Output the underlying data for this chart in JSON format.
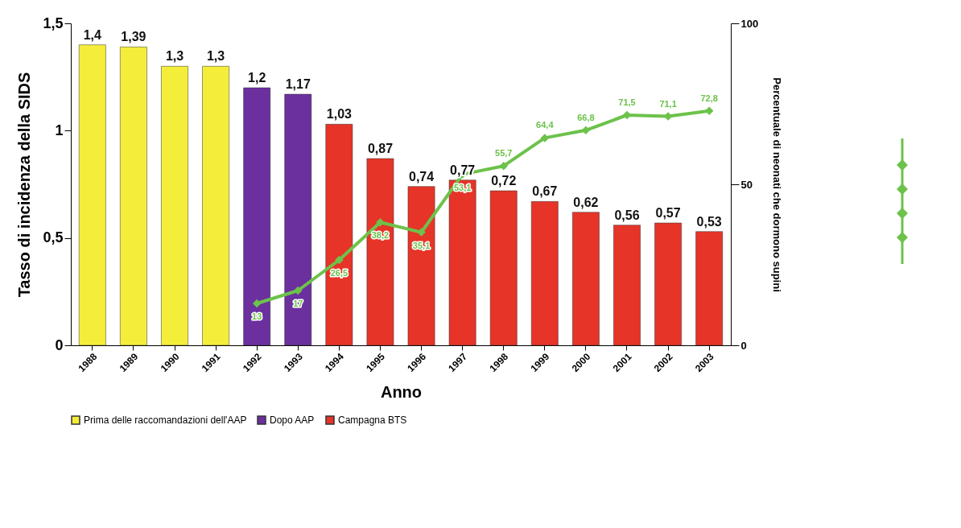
{
  "chart_data": {
    "type": "bar",
    "xlabel": "Anno",
    "ylabel": "Tasso di incidenza della SIDS",
    "y2label": "Percentuale di neonati che dormono supini",
    "categories": [
      "1988",
      "1989",
      "1990",
      "1991",
      "1992",
      "1993",
      "1994",
      "1995",
      "1996",
      "1997",
      "1998",
      "1999",
      "2000",
      "2001",
      "2002",
      "2003"
    ],
    "series": [
      {
        "name": "Prima delle raccomandazioni dell'AAP",
        "color": "#f4ee3a",
        "values": [
          1.4,
          1.39,
          1.3,
          1.3,
          null,
          null,
          null,
          null,
          null,
          null,
          null,
          null,
          null,
          null,
          null,
          null
        ],
        "value_labels": [
          "1,4",
          "1,39",
          "1,3",
          "1,3",
          null,
          null,
          null,
          null,
          null,
          null,
          null,
          null,
          null,
          null,
          null,
          null
        ]
      },
      {
        "name": "Dopo AAP",
        "color": "#6b2f9e",
        "values": [
          null,
          null,
          null,
          null,
          1.2,
          1.17,
          null,
          null,
          null,
          null,
          null,
          null,
          null,
          null,
          null,
          null
        ],
        "value_labels": [
          null,
          null,
          null,
          null,
          "1,2",
          "1,17",
          null,
          null,
          null,
          null,
          null,
          null,
          null,
          null,
          null,
          null
        ]
      },
      {
        "name": "Campagna BTS",
        "color": "#e63428",
        "values": [
          null,
          null,
          null,
          null,
          null,
          null,
          1.03,
          0.87,
          0.74,
          0.77,
          0.72,
          0.67,
          0.62,
          0.56,
          0.57,
          0.53
        ],
        "value_labels": [
          null,
          null,
          null,
          null,
          null,
          null,
          "1,03",
          "0,87",
          "0,74",
          "0,77",
          "0,72",
          "0,67",
          "0,62",
          "0,56",
          "0,57",
          "0,53"
        ]
      },
      {
        "type": "line",
        "axis": "y2",
        "color": "#6cc24a",
        "marker": "diamond",
        "values": [
          null,
          null,
          null,
          null,
          13,
          17,
          26.5,
          38.2,
          35.1,
          53.1,
          55.7,
          64.4,
          66.8,
          71.5,
          71.1,
          72.8
        ],
        "value_labels": [
          null,
          null,
          null,
          null,
          "13",
          "17",
          "26,5",
          "38,2",
          "35,1",
          "53,1",
          "55,7",
          "64,4",
          "66,8",
          "71,5",
          "71,1",
          "72,8"
        ]
      }
    ],
    "ylim": [
      0,
      1.5
    ],
    "yticks": [
      0,
      {
        "value": 0.5,
        "label": "0,5"
      },
      1,
      {
        "value": 1.5,
        "label": "1,5"
      }
    ],
    "y2lim": [
      0,
      100
    ],
    "y2ticks": [
      0,
      50,
      100
    ],
    "grid": false,
    "legend": "bottom"
  }
}
